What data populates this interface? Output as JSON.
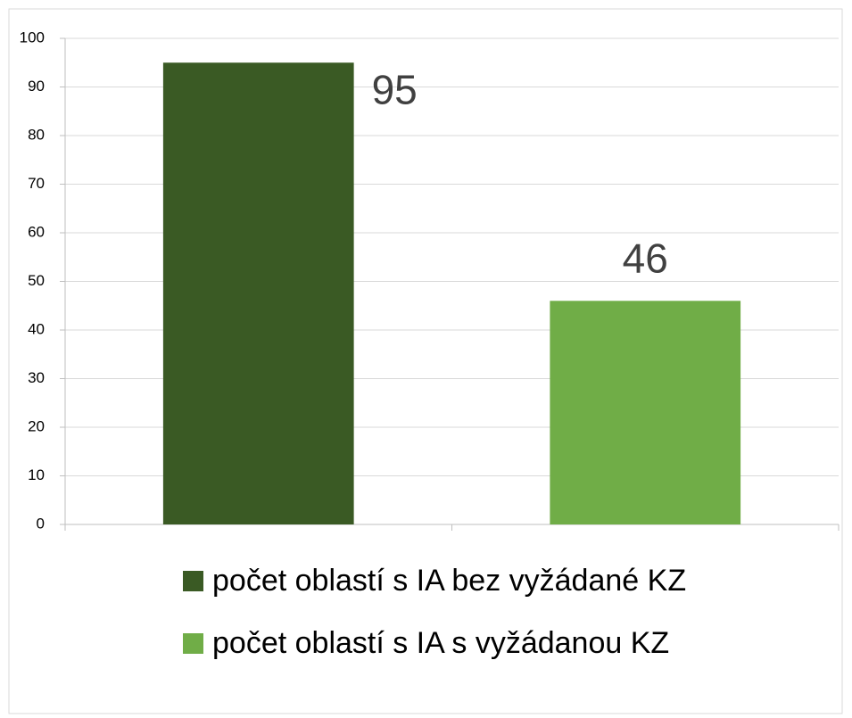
{
  "chart_data": {
    "type": "bar",
    "categories": [
      null,
      null
    ],
    "series": [
      {
        "name": "počet oblastí s IA bez vyžádané KZ",
        "color": "#3a5a24",
        "values": [
          95,
          null
        ]
      },
      {
        "name": "počet oblastí s IA s vyžádanou KZ",
        "color": "#70ad47",
        "values": [
          null,
          46
        ]
      }
    ],
    "ylim": [
      0,
      100
    ],
    "yticks": [
      0,
      10,
      20,
      30,
      40,
      50,
      60,
      70,
      80,
      90,
      100
    ],
    "grid": true,
    "legend": "bottom"
  }
}
